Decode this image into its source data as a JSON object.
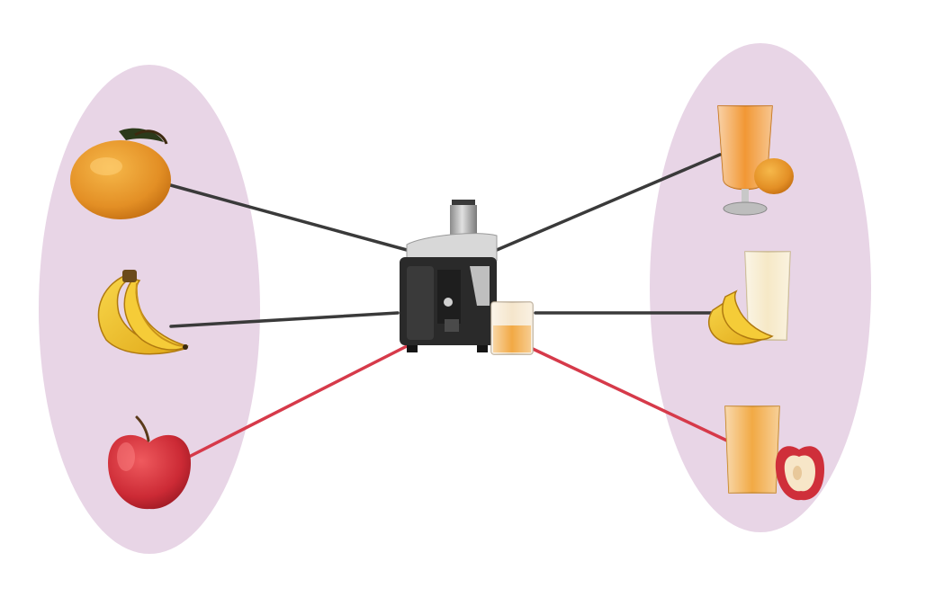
{
  "colors": {
    "set_fill": "#e8d5e6",
    "background": "#ffffff",
    "mapping_line": "#3a3a3a",
    "highlight_line": "#d63a4a",
    "mango": "#e8952a",
    "banana": "#f2c230",
    "apple": "#cf2f3a",
    "juice_orange": "#f08c1e",
    "juice_pale": "#f5e6c0",
    "juice_amber": "#f0a030",
    "juicer_body": "#2a2a2a",
    "juicer_steel": "#b8b8b8"
  },
  "fruits": [
    {
      "name": "mango",
      "icon": "mango-icon"
    },
    {
      "name": "banana",
      "icon": "banana-icon"
    },
    {
      "name": "apple",
      "icon": "apple-icon"
    }
  ],
  "juices": [
    {
      "name": "mango-juice",
      "icon": "mango-juice-icon"
    },
    {
      "name": "banana-juice",
      "icon": "banana-juice-icon"
    },
    {
      "name": "apple-juice",
      "icon": "apple-juice-icon"
    }
  ],
  "machine": {
    "name": "juicer",
    "icon": "juicer-icon"
  },
  "links": [
    {
      "from": "mango",
      "to": "juicer",
      "side": "input",
      "highlight": false
    },
    {
      "from": "banana",
      "to": "juicer",
      "side": "input",
      "highlight": false
    },
    {
      "from": "apple",
      "to": "juicer",
      "side": "input",
      "highlight": true
    },
    {
      "from": "juicer",
      "to": "mango-juice",
      "side": "output",
      "highlight": false
    },
    {
      "from": "juicer",
      "to": "banana-juice",
      "side": "output",
      "highlight": false
    },
    {
      "from": "juicer",
      "to": "apple-juice",
      "side": "output",
      "highlight": true
    }
  ]
}
